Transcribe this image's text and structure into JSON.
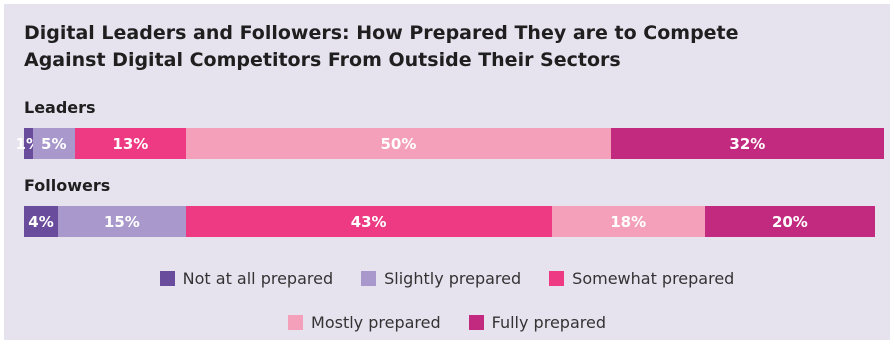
{
  "chart_data": {
    "type": "bar",
    "orientation": "horizontal",
    "stacked": true,
    "title_lines": [
      "Digital Leaders and Followers: How Prepared They are to Compete",
      "Against Digital Competitors From Outside Their Sectors"
    ],
    "categories": [
      "Leaders",
      "Followers"
    ],
    "series": [
      {
        "name": "Not at all prepared",
        "color": "#6a4c9c",
        "values": [
          1,
          4
        ],
        "labels": [
          "1%",
          "4%"
        ]
      },
      {
        "name": "Slightly prepared",
        "color": "#a898cc",
        "values": [
          5,
          15
        ],
        "labels": [
          "5%",
          "15%"
        ]
      },
      {
        "name": "Somewhat prepared",
        "color": "#ee3a82",
        "values": [
          13,
          43
        ],
        "labels": [
          "13%",
          "43%"
        ]
      },
      {
        "name": "Mostly prepared",
        "color": "#f4a0ba",
        "values": [
          50,
          18
        ],
        "labels": [
          "50%",
          "18%"
        ]
      },
      {
        "name": "Fully prepared",
        "color": "#c22a80",
        "values": [
          32,
          20
        ],
        "labels": [
          "32%",
          "20%"
        ]
      }
    ],
    "xlim": [
      0,
      100
    ],
    "grid": false,
    "legend_position": "bottom"
  }
}
